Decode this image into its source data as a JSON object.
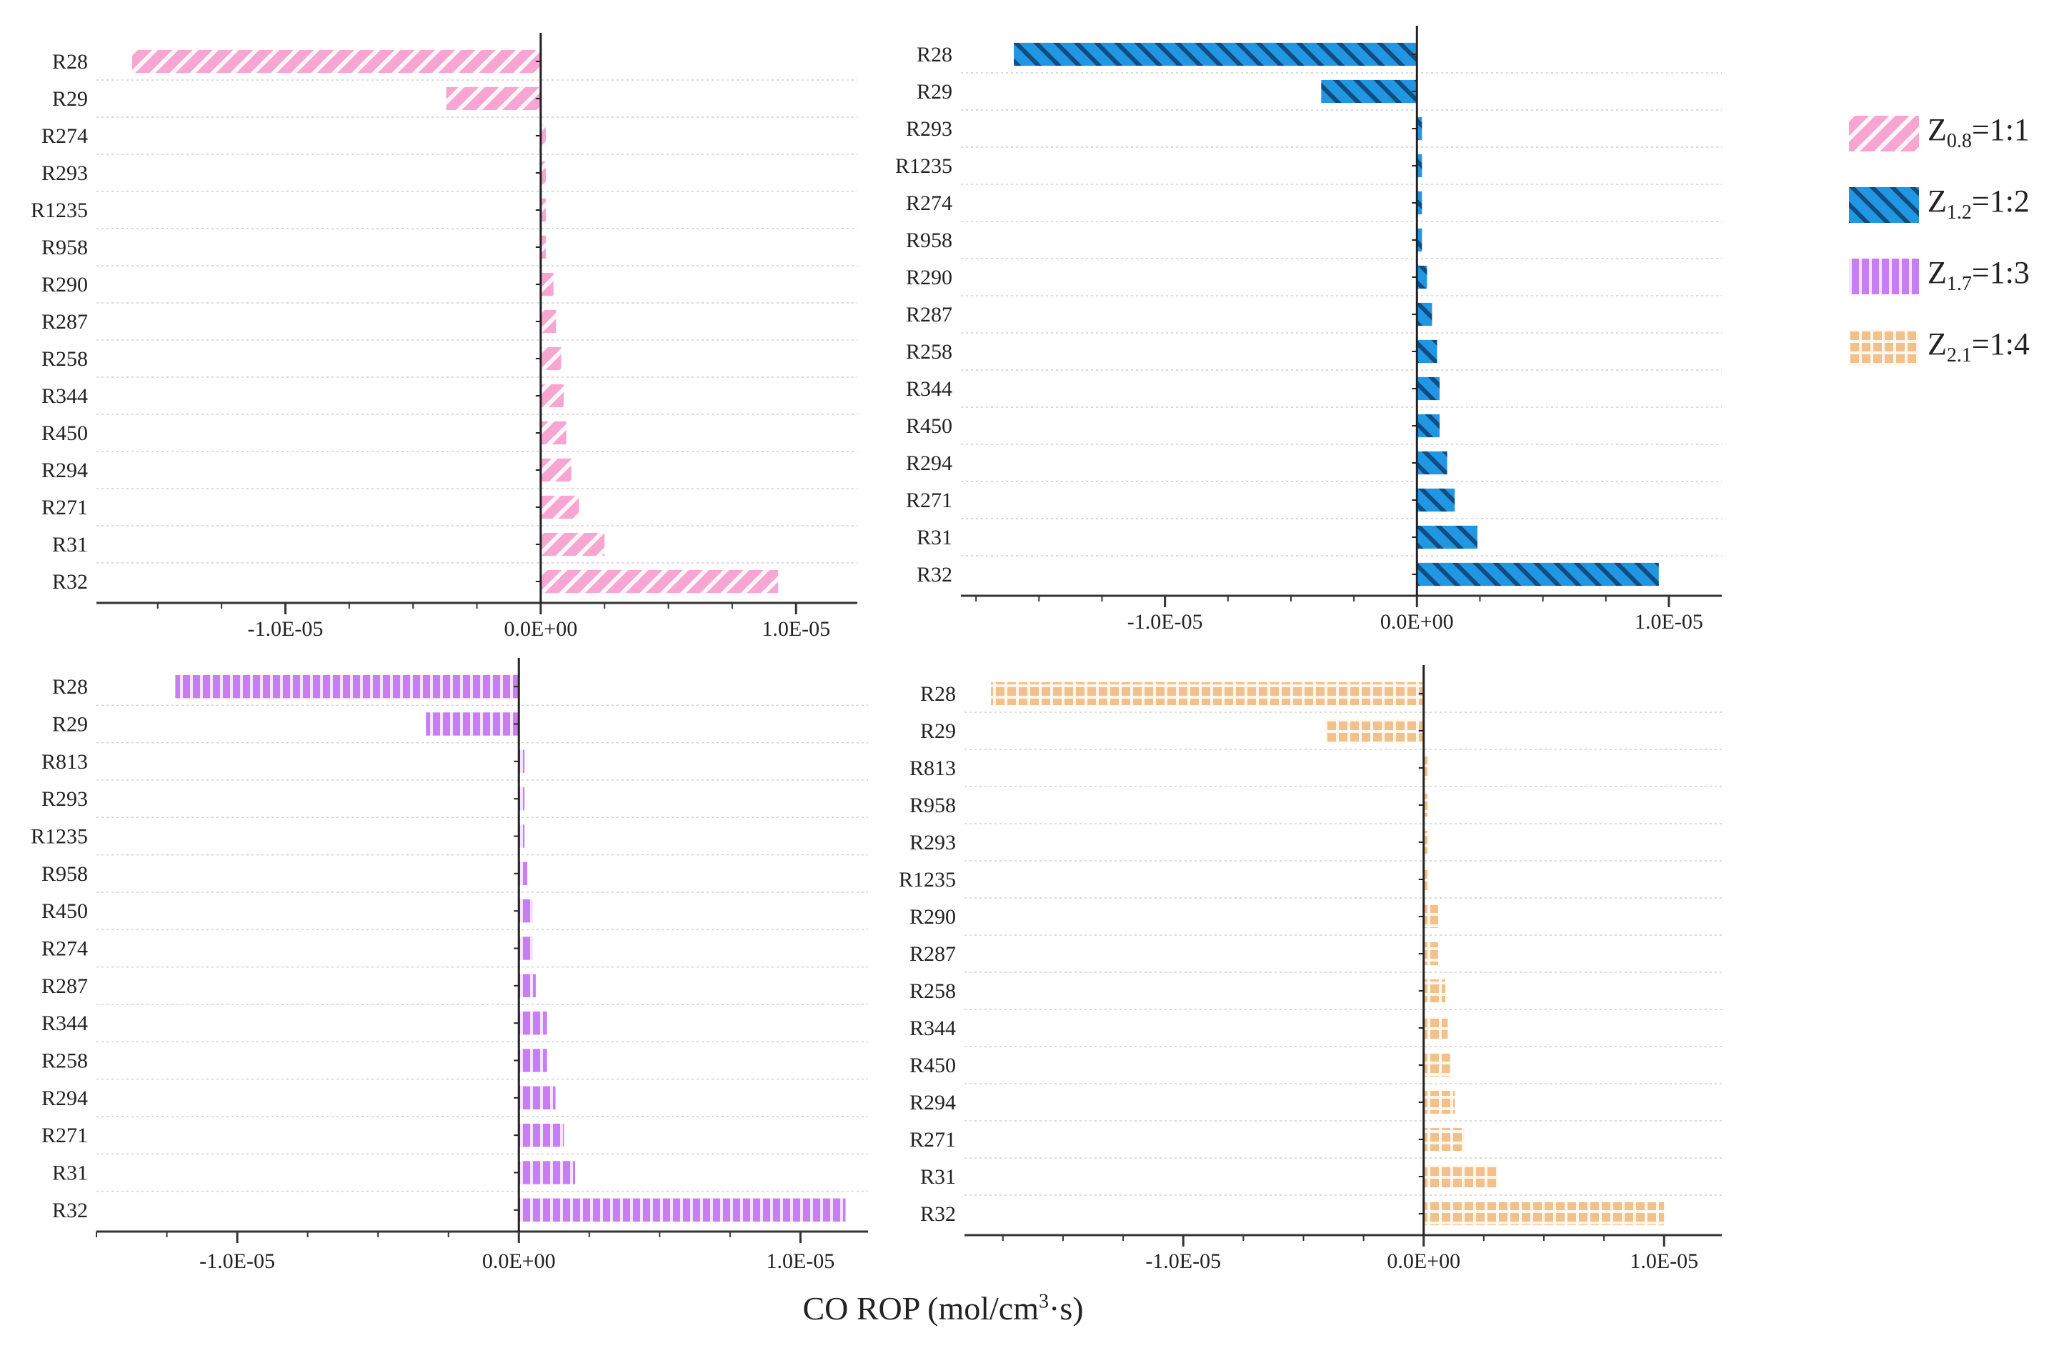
{
  "figure": {
    "xlabel_prefix": "CO ROP (mol/cm",
    "xlabel_sup": "3",
    "xlabel_suffix": "·s)"
  },
  "legend": [
    {
      "prefix": "Z",
      "sub": "0.8",
      "suffix": "=1:1",
      "pattern": "diag-right",
      "color": "#f7a6d2",
      "pattern_color": "#ffffff"
    },
    {
      "prefix": "Z",
      "sub": "1.2",
      "suffix": "=1:2",
      "pattern": "diag-left",
      "color": "#2196e3",
      "pattern_color": "#0d3f6e"
    },
    {
      "prefix": "Z",
      "sub": "1.7",
      "suffix": "=1:3",
      "pattern": "vertical",
      "color": "#c77ef2",
      "pattern_color": "#f4e4ff"
    },
    {
      "prefix": "Z",
      "sub": "2.1",
      "suffix": "=1:4",
      "pattern": "grid",
      "color": "#f2c08a",
      "pattern_color": "#fff6ec"
    }
  ],
  "chart_data": [
    {
      "type": "bar",
      "orientation": "horizontal",
      "series_name": "Z0.8=1:1",
      "categories": [
        "R28",
        "R29",
        "R274",
        "R293",
        "R1235",
        "R958",
        "R290",
        "R287",
        "R258",
        "R344",
        "R450",
        "R294",
        "R271",
        "R31",
        "R32"
      ],
      "values": [
        -1.6e-05,
        -3.7e-06,
        2e-07,
        2e-07,
        2e-07,
        2e-07,
        5e-07,
        6e-07,
        8e-07,
        9e-07,
        1e-06,
        1.2e-06,
        1.5e-06,
        2.5e-06,
        9.3e-06
      ],
      "xlim": [
        -1.74e-05,
        1.24e-05
      ],
      "xticks": [
        -1e-05,
        0,
        1e-05
      ],
      "xtick_labels": [
        "-1.0E-05",
        "0.0E+00",
        "1.0E-05"
      ]
    },
    {
      "type": "bar",
      "orientation": "horizontal",
      "series_name": "Z1.2=1:2",
      "categories": [
        "R28",
        "R29",
        "R293",
        "R1235",
        "R274",
        "R958",
        "R290",
        "R287",
        "R258",
        "R344",
        "R450",
        "R294",
        "R271",
        "R31",
        "R32"
      ],
      "values": [
        -1.6e-05,
        -3.8e-06,
        2e-07,
        2e-07,
        2e-07,
        2e-07,
        4e-07,
        6e-07,
        8e-07,
        9e-07,
        9e-07,
        1.2e-06,
        1.5e-06,
        2.4e-06,
        9.6e-06
      ],
      "xlim": [
        -1.81e-05,
        1.21e-05
      ],
      "xticks": [
        -1e-05,
        0,
        1e-05
      ],
      "xtick_labels": [
        "-1.0E-05",
        "0.0E+00",
        "1.0E-05"
      ]
    },
    {
      "type": "bar",
      "orientation": "horizontal",
      "series_name": "Z1.7=1:3",
      "categories": [
        "R28",
        "R29",
        "R813",
        "R293",
        "R1235",
        "R958",
        "R450",
        "R274",
        "R287",
        "R344",
        "R258",
        "R294",
        "R271",
        "R31",
        "R32"
      ],
      "values": [
        -1.22e-05,
        -3.3e-06,
        2e-07,
        2e-07,
        2e-07,
        3e-07,
        5e-07,
        5e-07,
        6e-07,
        1e-06,
        1e-06,
        1.3e-06,
        1.6e-06,
        2e-06,
        1.16e-05
      ],
      "xlim": [
        -1.5e-05,
        1.24e-05
      ],
      "xticks": [
        -1e-05,
        0,
        1e-05
      ],
      "xtick_labels": [
        "-1.0E-05",
        "0.0E+00",
        "1.0E-05"
      ]
    },
    {
      "type": "bar",
      "orientation": "horizontal",
      "series_name": "Z2.1=1:4",
      "categories": [
        "R28",
        "R29",
        "R813",
        "R958",
        "R293",
        "R1235",
        "R290",
        "R287",
        "R258",
        "R344",
        "R450",
        "R294",
        "R271",
        "R31",
        "R32"
      ],
      "values": [
        -1.8e-05,
        -4.1e-06,
        2e-07,
        2e-07,
        2e-07,
        2e-07,
        6e-07,
        6e-07,
        9e-07,
        1e-06,
        1.1e-06,
        1.3e-06,
        1.7e-06,
        3.1e-06,
        1e-05
      ],
      "xlim": [
        -1.91e-05,
        1.24e-05
      ],
      "xticks": [
        -1e-05,
        0,
        1e-05
      ],
      "xtick_labels": [
        "-1.0E-05",
        "0.0E+00",
        "1.0E-05"
      ]
    }
  ]
}
